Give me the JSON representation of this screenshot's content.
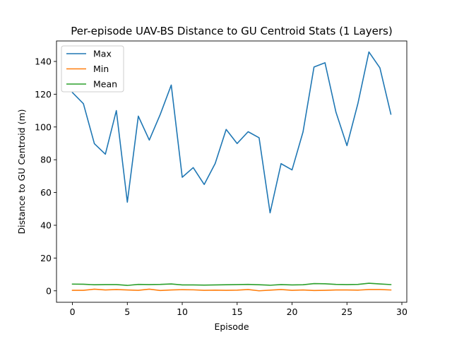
{
  "chart_data": {
    "type": "line",
    "title": "Per-episode UAV-BS Distance to GU Centroid Stats (1 Layers)",
    "xlabel": "Episode",
    "ylabel": "Distance to GU Centroid (m)",
    "xlim": [
      -1.45,
      30.45
    ],
    "ylim": [
      -7.0,
      152.5
    ],
    "xticks": [
      0,
      5,
      10,
      15,
      20,
      25,
      30
    ],
    "yticks": [
      0,
      20,
      40,
      60,
      80,
      100,
      120,
      140
    ],
    "grid": false,
    "legend_position": "top-left",
    "x": [
      0,
      1,
      2,
      3,
      4,
      5,
      6,
      7,
      8,
      9,
      10,
      11,
      12,
      13,
      14,
      15,
      16,
      17,
      18,
      19,
      20,
      21,
      22,
      23,
      24,
      25,
      26,
      27,
      28,
      29
    ],
    "series": [
      {
        "name": "Max",
        "color": "#1f77b4",
        "values": [
          121.0,
          114.2,
          89.8,
          83.4,
          110.0,
          54.1,
          106.6,
          92.0,
          107.7,
          125.6,
          69.3,
          75.2,
          64.9,
          77.7,
          98.5,
          89.9,
          97.1,
          93.4,
          47.6,
          77.6,
          73.8,
          97.0,
          136.6,
          139.2,
          109.0,
          88.6,
          114.4,
          145.8,
          136.1,
          107.8
        ]
      },
      {
        "name": "Min",
        "color": "#ff7f0e",
        "values": [
          0.3,
          0.3,
          1.0,
          0.5,
          0.8,
          0.5,
          0.3,
          1.0,
          0.2,
          0.5,
          0.7,
          0.6,
          0.3,
          0.4,
          0.3,
          0.4,
          0.8,
          0.0,
          0.4,
          0.8,
          0.3,
          0.5,
          0.2,
          0.3,
          0.5,
          0.5,
          0.4,
          0.8,
          0.8,
          0.5
        ]
      },
      {
        "name": "Mean",
        "color": "#2ca02c",
        "values": [
          4.1,
          4.0,
          3.7,
          3.8,
          3.8,
          3.3,
          3.9,
          3.8,
          3.9,
          4.2,
          3.6,
          3.6,
          3.5,
          3.6,
          3.7,
          3.8,
          3.9,
          3.7,
          3.4,
          3.8,
          3.6,
          3.7,
          4.4,
          4.3,
          3.9,
          3.8,
          3.9,
          4.6,
          4.2,
          3.8
        ]
      }
    ]
  }
}
